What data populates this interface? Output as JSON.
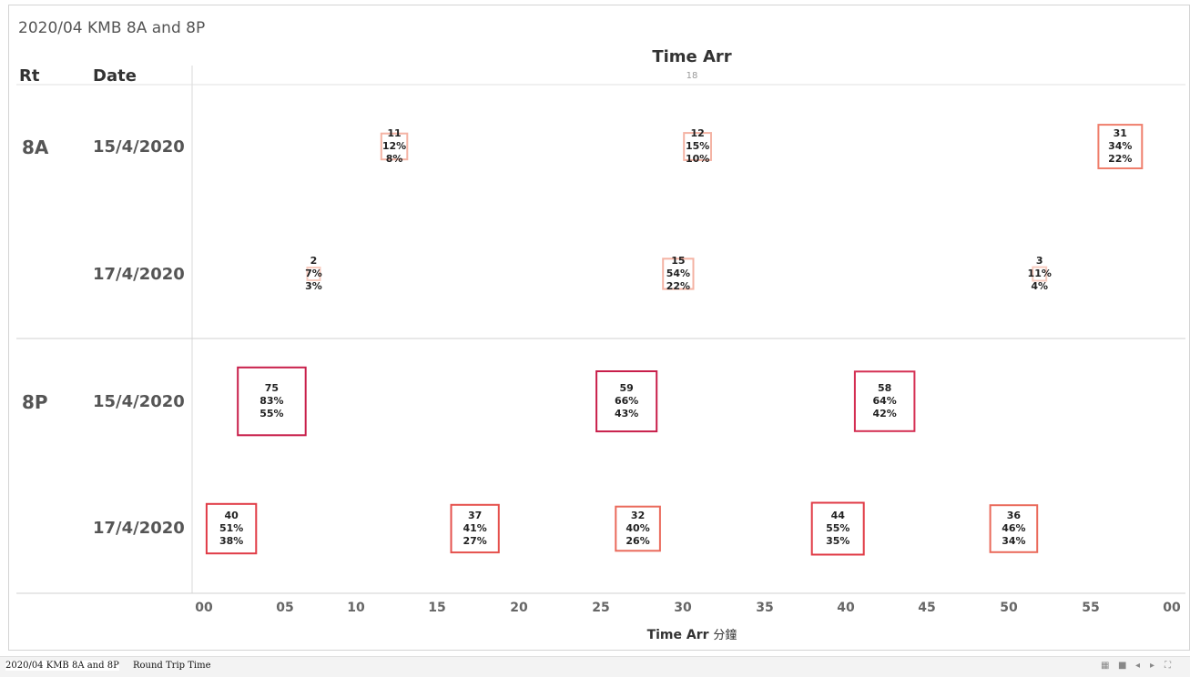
{
  "title": "2020/04 KMB 8A and 8P",
  "headers": {
    "rt": "Rt",
    "date": "Date",
    "column": "Time Arr",
    "column_sub": "18"
  },
  "x_axis": {
    "ticks": [
      "00",
      "05",
      "10",
      "15",
      "20",
      "25",
      "30",
      "35",
      "40",
      "45",
      "50",
      "55",
      "00"
    ],
    "label": "Time Arr",
    "label_suffix": "分鐘"
  },
  "rows": [
    {
      "rt": "8A",
      "date": "15/4/2020"
    },
    {
      "rt": "",
      "date": "17/4/2020"
    },
    {
      "rt": "8P",
      "date": "15/4/2020"
    },
    {
      "rt": "",
      "date": "17/4/2020"
    }
  ],
  "chart_data": {
    "type": "scatter",
    "title": "2020/04 KMB 8A and 8P",
    "xlabel": "Time Arr 分鐘",
    "xlim": [
      0,
      60
    ],
    "rows": [
      "8A 15/4/2020",
      "8A 17/4/2020",
      "8P 15/4/2020",
      "8P 17/4/2020"
    ],
    "points": [
      {
        "row": 0,
        "x": 11.8,
        "count": "11",
        "pct1": "12%",
        "pct2": "8%",
        "color": "#f4b3a4"
      },
      {
        "row": 0,
        "x": 30.6,
        "count": "12",
        "pct1": "15%",
        "pct2": "10%",
        "color": "#f4b3a4"
      },
      {
        "row": 0,
        "x": 56.8,
        "count": "31",
        "pct1": "34%",
        "pct2": "22%",
        "color": "#ef7e6b"
      },
      {
        "row": 1,
        "x": 6.8,
        "count": "2",
        "pct1": "7%",
        "pct2": "3%",
        "color": "#f7cbbf"
      },
      {
        "row": 1,
        "x": 29.4,
        "count": "15",
        "pct1": "54%",
        "pct2": "22%",
        "color": "#f4b3a4"
      },
      {
        "row": 1,
        "x": 51.8,
        "count": "3",
        "pct1": "11%",
        "pct2": "4%",
        "color": "#f7cbbf"
      },
      {
        "row": 2,
        "x": 4.2,
        "count": "75",
        "pct1": "83%",
        "pct2": "55%",
        "color": "#c81e4a"
      },
      {
        "row": 2,
        "x": 26.2,
        "count": "59",
        "pct1": "66%",
        "pct2": "43%",
        "color": "#c81e4a"
      },
      {
        "row": 2,
        "x": 42.2,
        "count": "58",
        "pct1": "64%",
        "pct2": "42%",
        "color": "#d42e52"
      },
      {
        "row": 3,
        "x": 1.7,
        "count": "40",
        "pct1": "51%",
        "pct2": "38%",
        "color": "#e03a45"
      },
      {
        "row": 3,
        "x": 16.8,
        "count": "37",
        "pct1": "41%",
        "pct2": "27%",
        "color": "#e5514d"
      },
      {
        "row": 3,
        "x": 26.9,
        "count": "32",
        "pct1": "40%",
        "pct2": "26%",
        "color": "#ea6a5b"
      },
      {
        "row": 3,
        "x": 39.3,
        "count": "44",
        "pct1": "55%",
        "pct2": "35%",
        "color": "#e03a45"
      },
      {
        "row": 3,
        "x": 50.2,
        "count": "36",
        "pct1": "46%",
        "pct2": "34%",
        "color": "#ea6a5b"
      }
    ]
  },
  "tabs": [
    {
      "label": "2020/04 KMB 8A and 8P"
    },
    {
      "label": "Round Trip Time"
    }
  ]
}
